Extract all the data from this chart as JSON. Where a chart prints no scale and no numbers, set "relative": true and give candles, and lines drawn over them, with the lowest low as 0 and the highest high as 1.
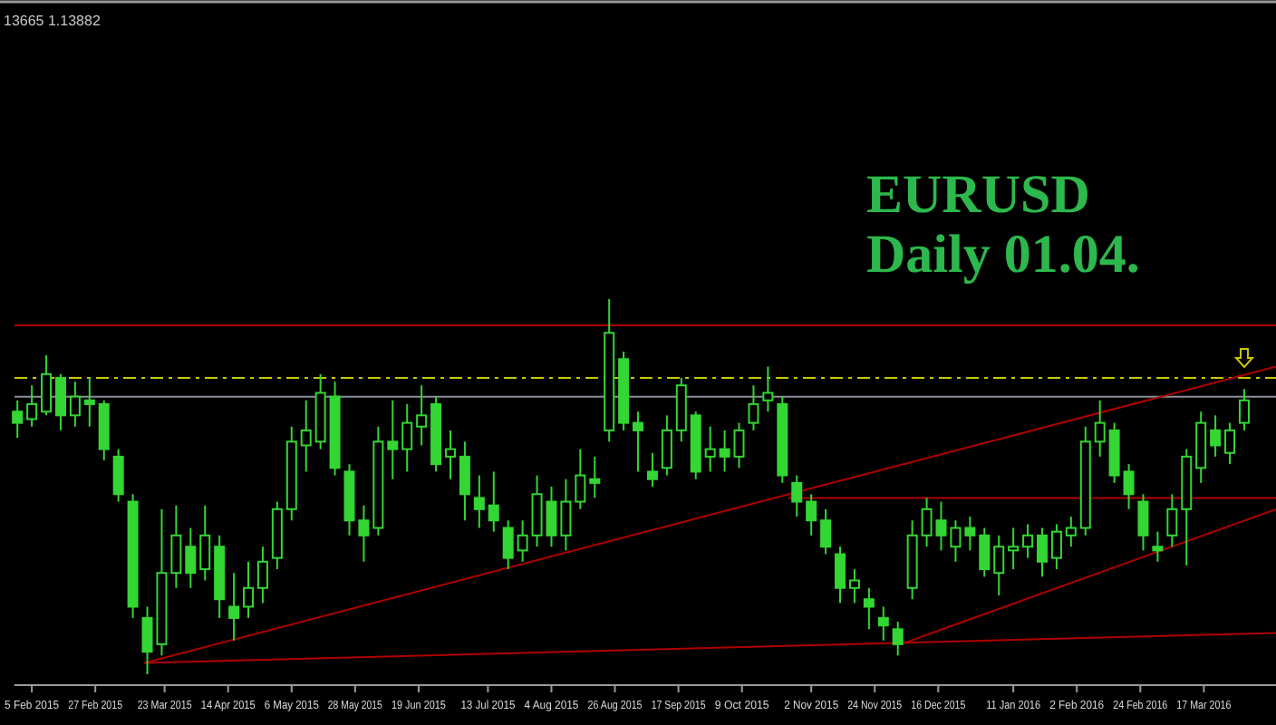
{
  "chart_data": {
    "type": "candlestick",
    "title": "EURUSD",
    "subtitle": "Daily 01.04.",
    "annotations": [
      "13665 1.13882"
    ],
    "relative": true,
    "color": "#33d633",
    "grid": false,
    "tick_labels": "x",
    "xlim": [
      "2015-01-30",
      "2016-04-11"
    ],
    "xticks": [
      {
        "value": "2015-02-05",
        "label": "5 Feb 2015"
      },
      {
        "value": "2015-02-27",
        "label": "27 Feb 2015"
      },
      {
        "value": "2015-03-23",
        "label": "23 Mar 2015"
      },
      {
        "value": "2015-04-14",
        "label": "14 Apr 2015"
      },
      {
        "value": "2015-05-06",
        "label": "6 May 2015"
      },
      {
        "value": "2015-05-28",
        "label": "28 May 2015"
      },
      {
        "value": "2015-06-19",
        "label": "19 Jun 2015"
      },
      {
        "value": "2015-07-13",
        "label": "13 Jul 2015"
      },
      {
        "value": "2015-08-04",
        "label": "4 Aug 2015"
      },
      {
        "value": "2015-08-26",
        "label": "26 Aug 2015"
      },
      {
        "value": "2015-09-17",
        "label": "17 Sep 2015"
      },
      {
        "value": "2015-10-09",
        "label": "9 Oct 2015"
      },
      {
        "value": "2015-11-02",
        "label": "2 Nov 2015"
      },
      {
        "value": "2015-11-24",
        "label": "24 Nov 2015"
      },
      {
        "value": "2015-12-16",
        "label": "16 Dec 2015"
      },
      {
        "value": "2016-01-11",
        "label": "11 Jan 2016"
      },
      {
        "value": "2016-02-02",
        "label": "2 Feb 2016"
      },
      {
        "value": "2016-02-24",
        "label": "24 Feb 2016"
      },
      {
        "value": "2016-03-17",
        "label": "17 Mar 2016"
      }
    ],
    "x": [
      "2015-01-31",
      "2015-02-05",
      "2015-02-10",
      "2015-02-15",
      "2015-02-20",
      "2015-02-25",
      "2015-03-02",
      "2015-03-07",
      "2015-03-12",
      "2015-03-17",
      "2015-03-22",
      "2015-03-27",
      "2015-04-01",
      "2015-04-06",
      "2015-04-11",
      "2015-04-16",
      "2015-04-21",
      "2015-04-26",
      "2015-05-01",
      "2015-05-06",
      "2015-05-11",
      "2015-05-16",
      "2015-05-21",
      "2015-05-26",
      "2015-05-31",
      "2015-06-05",
      "2015-06-10",
      "2015-06-15",
      "2015-06-20",
      "2015-06-25",
      "2015-06-30",
      "2015-07-05",
      "2015-07-10",
      "2015-07-15",
      "2015-07-20",
      "2015-07-25",
      "2015-07-30",
      "2015-08-04",
      "2015-08-09",
      "2015-08-14",
      "2015-08-19",
      "2015-08-24",
      "2015-08-29",
      "2015-09-03",
      "2015-09-08",
      "2015-09-13",
      "2015-09-18",
      "2015-09-23",
      "2015-09-28",
      "2015-10-03",
      "2015-10-08",
      "2015-10-13",
      "2015-10-18",
      "2015-10-23",
      "2015-10-28",
      "2015-11-02",
      "2015-11-07",
      "2015-11-12",
      "2015-11-17",
      "2015-11-22",
      "2015-11-27",
      "2015-12-02",
      "2015-12-07",
      "2015-12-12",
      "2015-12-17",
      "2015-12-22",
      "2015-12-27",
      "2016-01-01",
      "2016-01-06",
      "2016-01-11",
      "2016-01-16",
      "2016-01-21",
      "2016-01-26",
      "2016-01-31",
      "2016-02-05",
      "2016-02-10",
      "2016-02-15",
      "2016-02-20",
      "2016-02-25",
      "2016-03-01",
      "2016-03-06",
      "2016-03-11",
      "2016-03-16",
      "2016-03-21",
      "2016-03-26",
      "2016-03-31"
    ],
    "ohlc": [
      [
        0.7,
        0.73,
        0.63,
        0.67
      ],
      [
        0.68,
        0.77,
        0.66,
        0.72
      ],
      [
        0.7,
        0.85,
        0.69,
        0.8
      ],
      [
        0.79,
        0.8,
        0.65,
        0.69
      ],
      [
        0.69,
        0.78,
        0.66,
        0.74
      ],
      [
        0.73,
        0.79,
        0.66,
        0.72
      ],
      [
        0.72,
        0.73,
        0.57,
        0.6
      ],
      [
        0.58,
        0.6,
        0.46,
        0.48
      ],
      [
        0.46,
        0.48,
        0.15,
        0.18
      ],
      [
        0.15,
        0.18,
        0,
        0.06
      ],
      [
        0.08,
        0.44,
        0.05,
        0.27
      ],
      [
        0.27,
        0.45,
        0.23,
        0.37
      ],
      [
        0.34,
        0.39,
        0.23,
        0.27
      ],
      [
        0.28,
        0.45,
        0.25,
        0.37
      ],
      [
        0.34,
        0.37,
        0.15,
        0.2
      ],
      [
        0.18,
        0.27,
        0.09,
        0.15
      ],
      [
        0.18,
        0.3,
        0.15,
        0.23
      ],
      [
        0.23,
        0.34,
        0.19,
        0.3
      ],
      [
        0.31,
        0.46,
        0.28,
        0.44
      ],
      [
        0.44,
        0.66,
        0.41,
        0.62
      ],
      [
        0.61,
        0.73,
        0.54,
        0.65
      ],
      [
        0.62,
        0.8,
        0.6,
        0.75
      ],
      [
        0.74,
        0.78,
        0.53,
        0.55
      ],
      [
        0.54,
        0.56,
        0.37,
        0.41
      ],
      [
        0.41,
        0.45,
        0.3,
        0.37
      ],
      [
        0.39,
        0.66,
        0.37,
        0.62
      ],
      [
        0.62,
        0.73,
        0.52,
        0.6
      ],
      [
        0.6,
        0.72,
        0.54,
        0.67
      ],
      [
        0.66,
        0.77,
        0.61,
        0.69
      ],
      [
        0.72,
        0.74,
        0.54,
        0.56
      ],
      [
        0.58,
        0.65,
        0.52,
        0.6
      ],
      [
        0.58,
        0.62,
        0.41,
        0.48
      ],
      [
        0.47,
        0.53,
        0.39,
        0.44
      ],
      [
        0.45,
        0.54,
        0.38,
        0.41
      ],
      [
        0.39,
        0.41,
        0.28,
        0.31
      ],
      [
        0.33,
        0.41,
        0.3,
        0.37
      ],
      [
        0.37,
        0.53,
        0.34,
        0.48
      ],
      [
        0.46,
        0.5,
        0.34,
        0.37
      ],
      [
        0.37,
        0.52,
        0.33,
        0.46
      ],
      [
        0.46,
        0.6,
        0.44,
        0.53
      ],
      [
        0.52,
        0.58,
        0.47,
        0.51
      ],
      [
        0.65,
        1.0,
        0.62,
        0.91
      ],
      [
        0.84,
        0.86,
        0.65,
        0.67
      ],
      [
        0.67,
        0.7,
        0.54,
        0.65
      ],
      [
        0.54,
        0.59,
        0.5,
        0.52
      ],
      [
        0.55,
        0.69,
        0.53,
        0.65
      ],
      [
        0.65,
        0.79,
        0.62,
        0.77
      ],
      [
        0.69,
        0.7,
        0.52,
        0.54
      ],
      [
        0.58,
        0.66,
        0.54,
        0.6
      ],
      [
        0.6,
        0.65,
        0.54,
        0.58
      ],
      [
        0.58,
        0.67,
        0.55,
        0.65
      ],
      [
        0.67,
        0.77,
        0.65,
        0.72
      ],
      [
        0.73,
        0.82,
        0.7,
        0.75
      ],
      [
        0.72,
        0.74,
        0.51,
        0.53
      ],
      [
        0.51,
        0.53,
        0.42,
        0.46
      ],
      [
        0.46,
        0.48,
        0.37,
        0.41
      ],
      [
        0.41,
        0.44,
        0.32,
        0.34
      ],
      [
        0.32,
        0.34,
        0.19,
        0.23
      ],
      [
        0.23,
        0.28,
        0.19,
        0.25
      ],
      [
        0.2,
        0.23,
        0.12,
        0.18
      ],
      [
        0.15,
        0.18,
        0.09,
        0.13
      ],
      [
        0.12,
        0.14,
        0.05,
        0.08
      ],
      [
        0.23,
        0.41,
        0.2,
        0.37
      ],
      [
        0.37,
        0.47,
        0.34,
        0.44
      ],
      [
        0.41,
        0.46,
        0.33,
        0.37
      ],
      [
        0.34,
        0.41,
        0.3,
        0.39
      ],
      [
        0.39,
        0.42,
        0.33,
        0.37
      ],
      [
        0.37,
        0.39,
        0.26,
        0.28
      ],
      [
        0.27,
        0.37,
        0.21,
        0.34
      ],
      [
        0.33,
        0.39,
        0.28,
        0.34
      ],
      [
        0.34,
        0.4,
        0.31,
        0.37
      ],
      [
        0.37,
        0.39,
        0.26,
        0.3
      ],
      [
        0.31,
        0.4,
        0.28,
        0.38
      ],
      [
        0.37,
        0.42,
        0.34,
        0.39
      ],
      [
        0.39,
        0.66,
        0.37,
        0.62
      ],
      [
        0.62,
        0.73,
        0.58,
        0.67
      ],
      [
        0.65,
        0.67,
        0.51,
        0.53
      ],
      [
        0.54,
        0.56,
        0.44,
        0.48
      ],
      [
        0.46,
        0.48,
        0.33,
        0.37
      ],
      [
        0.34,
        0.38,
        0.3,
        0.33
      ],
      [
        0.37,
        0.48,
        0.34,
        0.44
      ],
      [
        0.44,
        0.6,
        0.29,
        0.58
      ],
      [
        0.55,
        0.7,
        0.51,
        0.67
      ],
      [
        0.65,
        0.69,
        0.58,
        0.61
      ],
      [
        0.59,
        0.67,
        0.56,
        0.65
      ],
      [
        0.67,
        0.76,
        0.65,
        0.73
      ]
    ],
    "series": [
      {
        "type": "line",
        "color": "#b00000",
        "x": [
          "2015-03-16",
          "2016-04-11"
        ],
        "values": [
          0.03,
          0.82
        ]
      },
      {
        "type": "line",
        "color": "#b00000",
        "x": [
          "2015-03-16",
          "2016-04-11"
        ],
        "values": [
          0.03,
          0.11
        ]
      },
      {
        "type": "line",
        "color": "#b00000",
        "x": [
          "2015-12-03",
          "2016-04-11"
        ],
        "values": [
          0.08,
          0.44
        ]
      },
      {
        "type": "line",
        "color": "#b00000",
        "x": [
          "2015-10-25",
          "2016-04-11"
        ],
        "values": [
          0.47,
          0.47
        ]
      }
    ],
    "ref_lines": [
      {
        "axis": "y",
        "value": 0.93,
        "color": "#b00000",
        "line_style": "solid"
      },
      {
        "axis": "y",
        "value": 0.79,
        "color": "#c8c800",
        "line_style": "dashed"
      },
      {
        "axis": "y",
        "value": 0.74,
        "color": "#8a8f99",
        "line_style": "solid"
      }
    ]
  }
}
